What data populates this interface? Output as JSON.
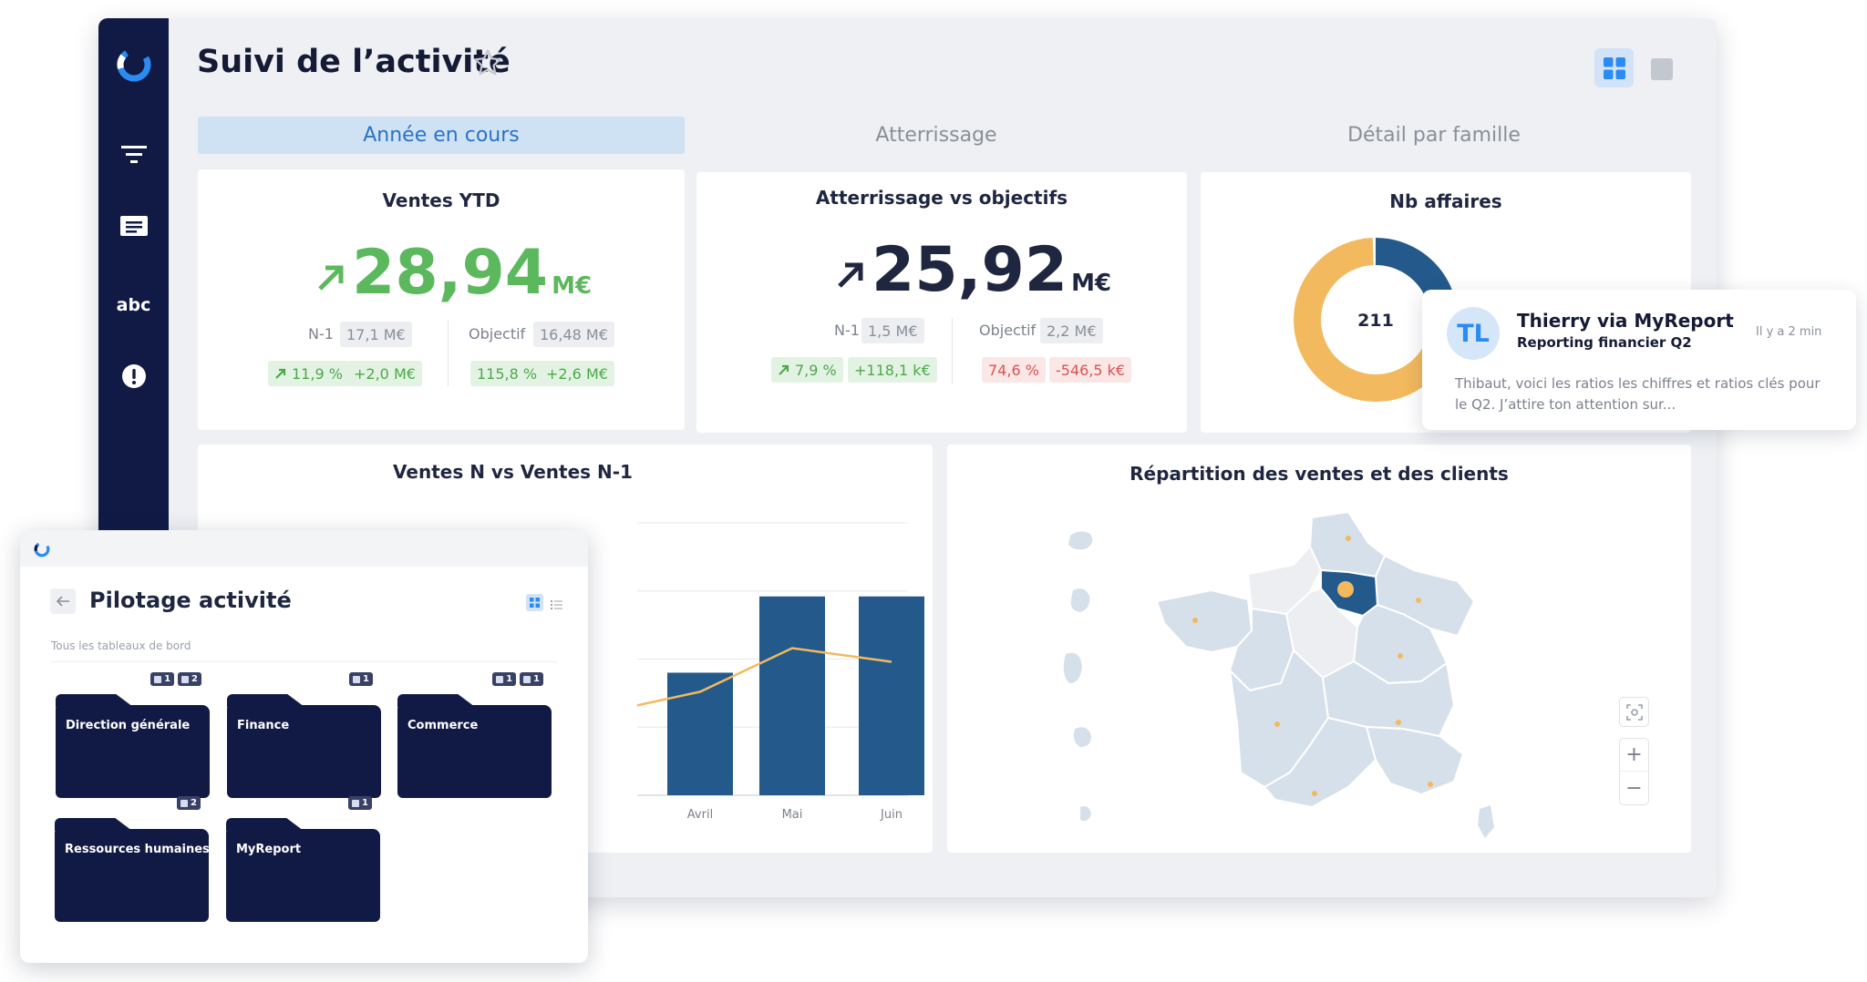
{
  "header": {
    "title": "Suivi de l’activité"
  },
  "sidebar": {
    "text_item": "abc"
  },
  "tabs": [
    {
      "label": "Année en cours",
      "active": true
    },
    {
      "label": "Atterrissage",
      "active": false
    },
    {
      "label": "Détail par famille",
      "active": false
    }
  ],
  "colors": {
    "sidebar": "#111a44",
    "green": "#5cb85c",
    "bar": "#235a8b",
    "accent": "#f2b95e",
    "map": "#d6e0ea"
  },
  "cards": {
    "ventes_ytd": {
      "title": "Ventes YTD",
      "value": "28,94",
      "unit": "M€",
      "n1_label": "N-1",
      "n1_value": "17,1 M€",
      "obj_label": "Objectif",
      "obj_value": "16,48 M€",
      "d1": "11,9 %",
      "d2": "+2,0 M€",
      "d3": "115,8 %",
      "d4": "+2,6 M€"
    },
    "atterrissage": {
      "title": "Atterrissage vs objectifs",
      "value": "25,92",
      "unit": "M€",
      "n1_label": "N-1",
      "n1_value": "1,5 M€",
      "obj_label": "Objectif",
      "obj_value": "2,2 M€",
      "d1": "7,9 %",
      "d2": "+118,1 k€",
      "d3": "74,6 %",
      "d4": "-546,5 k€"
    },
    "nb_affaires": {
      "title": "Nb affaires",
      "center": "211"
    },
    "ventes_chart": {
      "title": "Ventes N vs Ventes N-1"
    },
    "map": {
      "title": "Répartition des ventes et des clients"
    }
  },
  "chart_data": [
    {
      "type": "bar",
      "title": "Ventes N vs Ventes N-1",
      "categories": [
        "Avril",
        "Mai",
        "Juin"
      ],
      "series": [
        {
          "type": "bar",
          "values": [
            0.45,
            0.73,
            0.73
          ]
        },
        {
          "type": "line",
          "values": [
            0.38,
            0.54,
            0.49
          ]
        }
      ]
    },
    {
      "type": "pie",
      "title": "Nb affaires",
      "center_label": "211",
      "slices": [
        {
          "value": 0.68,
          "color": "#f2b95e"
        },
        {
          "value": 0.32,
          "color": "#235a8b"
        }
      ]
    }
  ],
  "notification": {
    "initials": "TL",
    "sender": "Thierry via MyReport",
    "subject": "Reporting financier Q2",
    "time": "Il y a 2 min",
    "message_line1": "Thibaut, voici les ratios les chiffres et ratios clés pour",
    "message_line2": "le Q2. J’attire ton attention sur..."
  },
  "overlay": {
    "title": "Pilotage activité",
    "subtitle": "Tous les tableaux de bord",
    "folders": [
      {
        "name": "Direction générale",
        "badges": [
          "1",
          "2"
        ]
      },
      {
        "name": "Finance",
        "badges": [
          "1"
        ]
      },
      {
        "name": "Commerce",
        "badges": [
          "1",
          "1"
        ]
      },
      {
        "name": "Ressources humaines",
        "badges": [
          "2"
        ]
      },
      {
        "name": "MyReport",
        "badges": [
          "1"
        ]
      }
    ]
  },
  "map_controls": {
    "zoom_in": "+",
    "zoom_out": "−"
  }
}
